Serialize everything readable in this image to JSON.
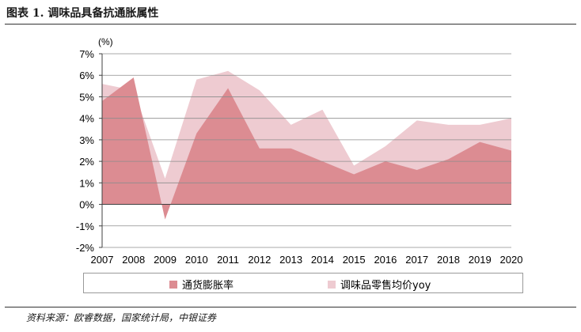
{
  "figure": {
    "title": "图表 1. 调味品具备抗通胀属性",
    "source": "资料来源：欧睿数据，国家统计局，中银证券"
  },
  "chart_data": {
    "type": "area",
    "unit_label": "(%)",
    "categories": [
      "2007",
      "2008",
      "2009",
      "2010",
      "2011",
      "2012",
      "2013",
      "2014",
      "2015",
      "2016",
      "2017",
      "2018",
      "2019",
      "2020"
    ],
    "yticks": [
      "7%",
      "6%",
      "5%",
      "4%",
      "3%",
      "2%",
      "1%",
      "0%",
      "-1%",
      "-2%"
    ],
    "ylim": [
      -2,
      7
    ],
    "grid": true,
    "legend_position": "bottom",
    "series": [
      {
        "name": "调味品零售均价yoy",
        "color": "#eecbd1",
        "values": [
          5.6,
          5.3,
          1.2,
          5.8,
          6.2,
          5.3,
          3.7,
          4.4,
          1.8,
          2.7,
          3.9,
          3.7,
          3.7,
          4.0
        ]
      },
      {
        "name": "通货膨胀率",
        "color": "#dc8c92",
        "values": [
          4.8,
          5.9,
          -0.7,
          3.3,
          5.4,
          2.6,
          2.6,
          2.0,
          1.4,
          2.0,
          1.6,
          2.1,
          2.9,
          2.5
        ]
      }
    ]
  },
  "legend": [
    {
      "label": "通货膨胀率",
      "color": "#dc8c92"
    },
    {
      "label": "调味品零售均价yoy",
      "color": "#eecbd1"
    }
  ]
}
